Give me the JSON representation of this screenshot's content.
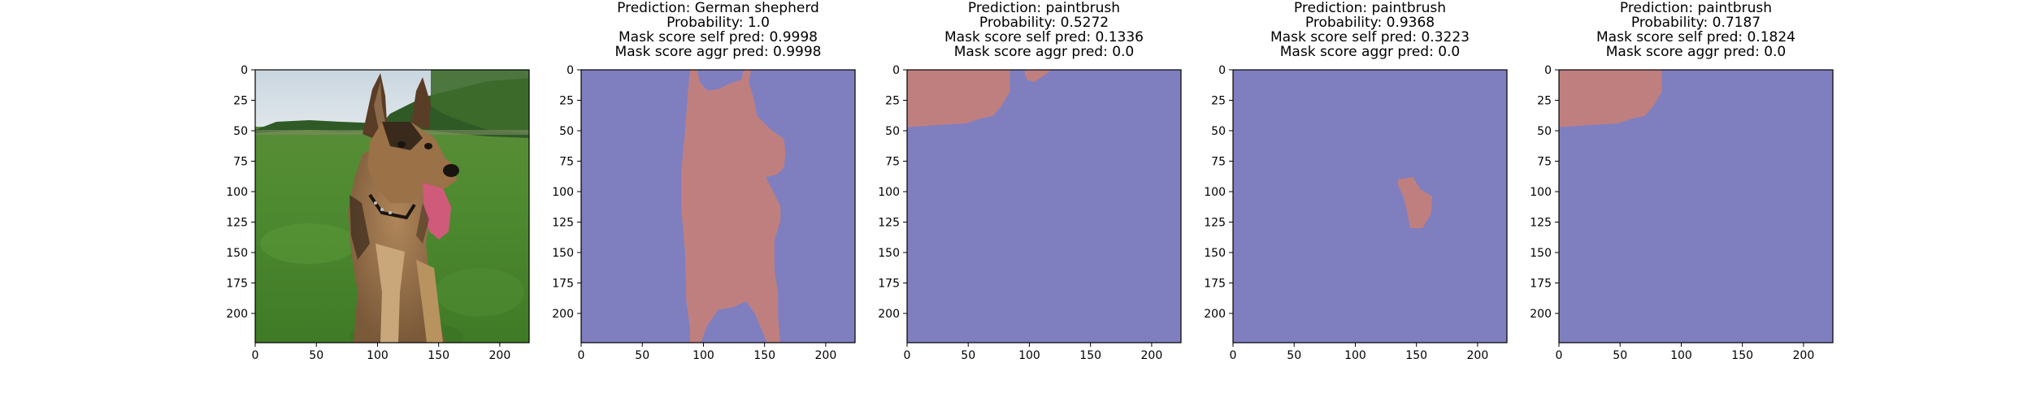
{
  "colors": {
    "background_class": "#7f7fc0",
    "mask_region": "#c07f7f",
    "axes_frame": "#000000"
  },
  "chart_data": [
    {
      "type": "image",
      "content": "photograph of a German shepherd dog sitting on green grass",
      "titles": [],
      "x_ticks": [
        "0",
        "50",
        "100",
        "150",
        "200"
      ],
      "y_ticks": [
        "0",
        "25",
        "50",
        "75",
        "100",
        "125",
        "150",
        "175",
        "200"
      ],
      "xlim": [
        0,
        224
      ],
      "ylim": [
        224,
        0
      ]
    },
    {
      "type": "heatmap",
      "titles": [
        "Prediction: German shepherd",
        "Probability: 1.0",
        "Mask score self pred: 0.9998",
        "Mask score aggr pred: 0.9998"
      ],
      "prediction": "German shepherd",
      "probability": 1.0,
      "mask_score_self_pred": 0.9998,
      "mask_score_aggr_pred": 0.9998,
      "x_ticks": [
        "0",
        "50",
        "100",
        "150",
        "200"
      ],
      "y_ticks": [
        "0",
        "25",
        "50",
        "75",
        "100",
        "125",
        "150",
        "175",
        "200"
      ],
      "xlim": [
        0,
        224
      ],
      "ylim": [
        224,
        0
      ],
      "mask_polygons": [
        [
          [
            89,
            0
          ],
          [
            95,
            0
          ],
          [
            97,
            10
          ],
          [
            103,
            17
          ],
          [
            112,
            16
          ],
          [
            120,
            12
          ],
          [
            131,
            8
          ],
          [
            133,
            0
          ],
          [
            139,
            0
          ],
          [
            137,
            10
          ],
          [
            141,
            23
          ],
          [
            144,
            38
          ],
          [
            155,
            49
          ],
          [
            166,
            57
          ],
          [
            167,
            68
          ],
          [
            166,
            80
          ],
          [
            160,
            86
          ],
          [
            151,
            88
          ],
          [
            157,
            100
          ],
          [
            163,
            112
          ],
          [
            163,
            124
          ],
          [
            158,
            140
          ],
          [
            158,
            163
          ],
          [
            161,
            184
          ],
          [
            161,
            203
          ],
          [
            163,
            224
          ],
          [
            152,
            224
          ],
          [
            147,
            212
          ],
          [
            142,
            200
          ],
          [
            135,
            190
          ],
          [
            124,
            195
          ],
          [
            112,
            197
          ],
          [
            103,
            210
          ],
          [
            98,
            224
          ],
          [
            89,
            224
          ],
          [
            89,
            212
          ],
          [
            86,
            190
          ],
          [
            85,
            150
          ],
          [
            82,
            115
          ],
          [
            82,
            82
          ],
          [
            85,
            50
          ],
          [
            87,
            23
          ]
        ]
      ]
    },
    {
      "type": "heatmap",
      "titles": [
        "Prediction: paintbrush",
        "Probability: 0.5272",
        "Mask score self pred: 0.1336",
        "Mask score aggr pred: 0.0"
      ],
      "prediction": "paintbrush",
      "probability": 0.5272,
      "mask_score_self_pred": 0.1336,
      "mask_score_aggr_pred": 0.0,
      "x_ticks": [
        "0",
        "50",
        "100",
        "150",
        "200"
      ],
      "y_ticks": [
        "0",
        "25",
        "50",
        "75",
        "100",
        "125",
        "150",
        "175",
        "200"
      ],
      "xlim": [
        0,
        224
      ],
      "ylim": [
        224,
        0
      ],
      "mask_polygons": [
        [
          [
            0,
            0
          ],
          [
            84,
            0
          ],
          [
            84,
            18
          ],
          [
            77,
            30
          ],
          [
            70,
            38
          ],
          [
            60,
            40
          ],
          [
            48,
            44
          ],
          [
            30,
            45
          ],
          [
            0,
            47
          ]
        ],
        [
          [
            97,
            0
          ],
          [
            118,
            0
          ],
          [
            110,
            6
          ],
          [
            104,
            10
          ],
          [
            98,
            8
          ],
          [
            96,
            2
          ]
        ]
      ]
    },
    {
      "type": "heatmap",
      "titles": [
        "Prediction: paintbrush",
        "Probability: 0.9368",
        "Mask score self pred: 0.3223",
        "Mask score aggr pred: 0.0"
      ],
      "prediction": "paintbrush",
      "probability": 0.9368,
      "mask_score_self_pred": 0.3223,
      "mask_score_aggr_pred": 0.0,
      "x_ticks": [
        "0",
        "50",
        "100",
        "150",
        "200"
      ],
      "y_ticks": [
        "0",
        "25",
        "50",
        "75",
        "100",
        "125",
        "150",
        "175",
        "200"
      ],
      "xlim": [
        0,
        224
      ],
      "ylim": [
        224,
        0
      ],
      "mask_polygons": [
        [
          [
            135,
            90
          ],
          [
            147,
            88
          ],
          [
            153,
            98
          ],
          [
            163,
            104
          ],
          [
            162,
            118
          ],
          [
            155,
            130
          ],
          [
            145,
            130
          ],
          [
            142,
            115
          ],
          [
            139,
            103
          ],
          [
            135,
            95
          ]
        ]
      ]
    },
    {
      "type": "heatmap",
      "titles": [
        "Prediction: paintbrush",
        "Probability: 0.7187",
        "Mask score self pred: 0.1824",
        "Mask score aggr pred: 0.0"
      ],
      "prediction": "paintbrush",
      "probability": 0.7187,
      "mask_score_self_pred": 0.1824,
      "mask_score_aggr_pred": 0.0,
      "x_ticks": [
        "0",
        "50",
        "100",
        "150",
        "200"
      ],
      "y_ticks": [
        "0",
        "25",
        "50",
        "75",
        "100",
        "125",
        "150",
        "175",
        "200"
      ],
      "xlim": [
        0,
        224
      ],
      "ylim": [
        224,
        0
      ],
      "mask_polygons": [
        [
          [
            0,
            0
          ],
          [
            84,
            0
          ],
          [
            84,
            18
          ],
          [
            77,
            30
          ],
          [
            70,
            38
          ],
          [
            60,
            40
          ],
          [
            48,
            44
          ],
          [
            30,
            45
          ],
          [
            0,
            47
          ]
        ]
      ]
    }
  ]
}
